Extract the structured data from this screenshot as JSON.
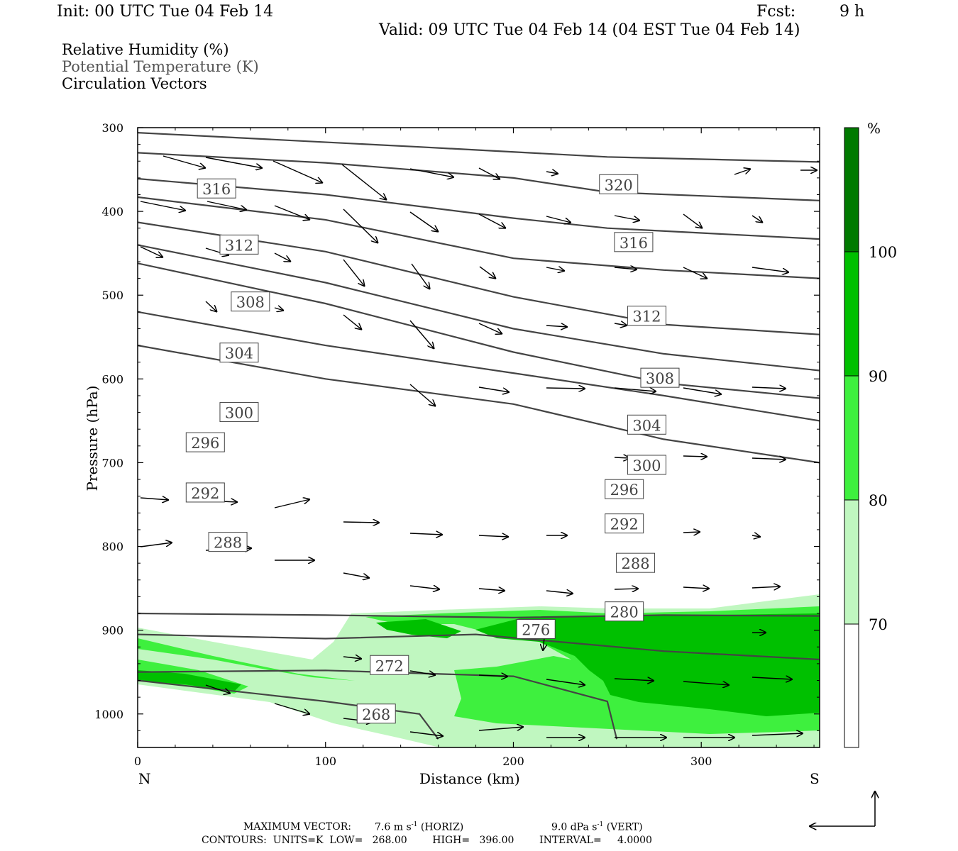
{
  "header": {
    "init": "Init: 00 UTC Tue 04 Feb 14",
    "fcst_label": "Fcst:",
    "fcst_value": "9 h",
    "valid": "Valid: 09 UTC Tue 04 Feb 14 (04 EST Tue 04 Feb 14)",
    "fields": [
      "Relative Humidity (%)",
      "Potential Temperature (K)",
      "Circulation Vectors"
    ]
  },
  "chart_data": {
    "type": "cross-section",
    "xlabel": "Distance (km)",
    "ylabel": "Pressure (hPa)",
    "x_ticks": [
      0,
      100,
      200,
      300
    ],
    "y_ticks": [
      300,
      400,
      500,
      600,
      700,
      800,
      900,
      1000
    ],
    "xlim": [
      0,
      363
    ],
    "ylim": [
      300,
      1040
    ],
    "y_inverted": true,
    "left_end_label": "N",
    "right_end_label": "S",
    "colorbar": {
      "unit": "%",
      "levels": [
        70,
        80,
        90,
        100
      ],
      "colors": [
        "#ffffff",
        "#c0f7c0",
        "#3ef03e",
        "#00c000",
        "#007a00"
      ]
    },
    "theta_contours": [
      {
        "label": "320",
        "pts": [
          [
            0,
            306
          ],
          [
            150,
            323
          ],
          [
            250,
            335
          ],
          [
            363,
            341
          ]
        ],
        "label_at": [
          256,
          368
        ]
      },
      {
        "label": "316",
        "pts": [
          [
            0,
            330
          ],
          [
            100,
            342
          ],
          [
            200,
            360
          ],
          [
            250,
            377
          ],
          [
            363,
            387
          ]
        ],
        "label_at": [
          42,
          373
        ],
        "label_at2": [
          264,
          437
        ]
      },
      {
        "label": "312",
        "pts": [
          [
            0,
            361
          ],
          [
            100,
            380
          ],
          [
            200,
            408
          ],
          [
            250,
            420
          ],
          [
            363,
            433
          ]
        ],
        "label_at": [
          54,
          440
        ],
        "label_at2": [
          271,
          525
        ]
      },
      {
        "label": "308",
        "pts": [
          [
            0,
            383
          ],
          [
            100,
            410
          ],
          [
            200,
            456
          ],
          [
            280,
            470
          ],
          [
            363,
            480
          ]
        ],
        "label_at": [
          60,
          508
        ],
        "label_at2": [
          278,
          599
        ]
      },
      {
        "label": "304",
        "pts": [
          [
            0,
            413
          ],
          [
            100,
            448
          ],
          [
            200,
            502
          ],
          [
            280,
            535
          ],
          [
            363,
            547
          ]
        ],
        "label_at": [
          54,
          569
        ],
        "label_at2": [
          271,
          655
        ]
      },
      {
        "label": "300",
        "pts": [
          [
            0,
            440
          ],
          [
            100,
            485
          ],
          [
            200,
            540
          ],
          [
            280,
            570
          ],
          [
            363,
            590
          ]
        ],
        "label_at": [
          54,
          640
        ],
        "label_at2": [
          271,
          703
        ]
      },
      {
        "label": "296",
        "pts": [
          [
            0,
            462
          ],
          [
            100,
            510
          ],
          [
            200,
            568
          ],
          [
            280,
            605
          ],
          [
            363,
            623
          ]
        ],
        "label_at": [
          36,
          676
        ],
        "label_at2": [
          259,
          732
        ]
      },
      {
        "label": "292",
        "pts": [
          [
            0,
            520
          ],
          [
            100,
            560
          ],
          [
            200,
            593
          ],
          [
            280,
            620
          ],
          [
            363,
            650
          ]
        ],
        "label_at": [
          36,
          736
        ],
        "label_at2": [
          259,
          773
        ]
      },
      {
        "label": "288",
        "pts": [
          [
            0,
            560
          ],
          [
            100,
            600
          ],
          [
            200,
            630
          ],
          [
            280,
            672
          ],
          [
            363,
            700
          ]
        ],
        "label_at": [
          48,
          795
        ],
        "label_at2": [
          265,
          820
        ]
      },
      {
        "label": "280",
        "pts": [
          [
            0,
            880
          ],
          [
            100,
            882
          ],
          [
            200,
            885
          ],
          [
            280,
            882
          ],
          [
            363,
            883
          ]
        ],
        "label_at": [
          259,
          878
        ]
      },
      {
        "label": "276",
        "pts": [
          [
            0,
            905
          ],
          [
            100,
            910
          ],
          [
            180,
            905
          ],
          [
            280,
            925
          ],
          [
            363,
            935
          ]
        ],
        "label_at": [
          212,
          899
        ]
      },
      {
        "label": "272",
        "pts": [
          [
            0,
            950
          ],
          [
            100,
            948
          ],
          [
            200,
            955
          ],
          [
            250,
            985
          ],
          [
            255,
            1030
          ]
        ],
        "label_at": [
          134,
          942
        ]
      },
      {
        "label": "268",
        "pts": [
          [
            0,
            960
          ],
          [
            100,
            985
          ],
          [
            150,
            1000
          ],
          [
            160,
            1030
          ]
        ],
        "label_at": [
          127,
          1000
        ]
      }
    ],
    "rh_filled_regions": [
      {
        "level": "70-80",
        "desc": "low level moist layer below 880 hPa"
      },
      {
        "level": "80-90",
        "desc": "band 880-1030 hPa"
      },
      {
        "level": "90-100",
        "desc": "core 900-1000 hPa, 240-363 km"
      }
    ]
  },
  "footer": {
    "max_vector_label": "MAXIMUM VECTOR:",
    "horiz": "7.6 m s",
    "horiz_exp": "-1",
    "horiz_tag": "(HORIZ)",
    "vert": "9.0 dPa s",
    "vert_exp": "-1",
    "vert_tag": "(VERT)",
    "contours": "CONTOURS:  UNITS=K  LOW=   268.00        HIGH=   396.00        INTERVAL=     4.0000"
  }
}
